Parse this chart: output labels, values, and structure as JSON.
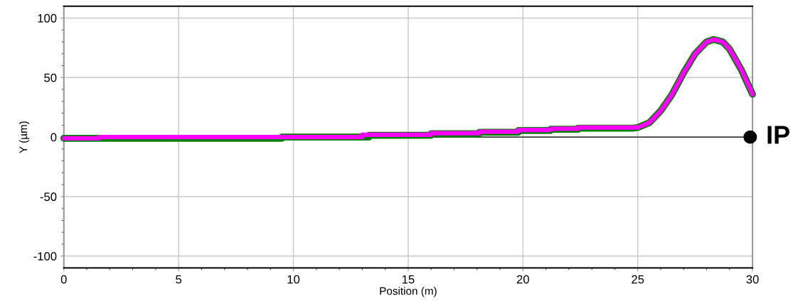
{
  "chart_data": {
    "type": "line",
    "xlabel": "Position (m)",
    "ylabel": "Y (µm)",
    "xlim": [
      0,
      30
    ],
    "ylim": [
      -110,
      110
    ],
    "xticks": [
      0,
      {
        "value": 1,
        "label": null
      },
      {
        "value": 2,
        "label": null
      },
      {
        "value": 3,
        "label": null
      },
      {
        "value": 4,
        "label": null
      },
      5,
      {
        "value": 6,
        "label": null
      },
      {
        "value": 7,
        "label": null
      },
      {
        "value": 8,
        "label": null
      },
      {
        "value": 9,
        "label": null
      },
      10,
      {
        "value": 11,
        "label": null
      },
      {
        "value": 12,
        "label": null
      },
      {
        "value": 13,
        "label": null
      },
      {
        "value": 14,
        "label": null
      },
      15,
      {
        "value": 16,
        "label": null
      },
      {
        "value": 17,
        "label": null
      },
      {
        "value": 18,
        "label": null
      },
      {
        "value": 19,
        "label": null
      },
      20,
      {
        "value": 21,
        "label": null
      },
      {
        "value": 22,
        "label": null
      },
      {
        "value": 23,
        "label": null
      },
      {
        "value": 24,
        "label": null
      },
      25,
      {
        "value": 26,
        "label": null
      },
      {
        "value": 27,
        "label": null
      },
      {
        "value": 28,
        "label": null
      },
      {
        "value": 29,
        "label": null
      },
      30
    ],
    "yticks": [
      -100,
      {
        "value": -90,
        "label": null
      },
      {
        "value": -80,
        "label": null
      },
      {
        "value": -70,
        "label": null
      },
      {
        "value": -60,
        "label": null
      },
      -50,
      {
        "value": -40,
        "label": null
      },
      {
        "value": -30,
        "label": null
      },
      {
        "value": -20,
        "label": null
      },
      {
        "value": -10,
        "label": null
      },
      0,
      {
        "value": 10,
        "label": null
      },
      {
        "value": 20,
        "label": null
      },
      {
        "value": 30,
        "label": null
      },
      {
        "value": 40,
        "label": null
      },
      50,
      {
        "value": 60,
        "label": null
      },
      {
        "value": 70,
        "label": null
      },
      {
        "value": 80,
        "label": null
      },
      {
        "value": 90,
        "label": null
      },
      100
    ],
    "grid": true,
    "line_style": "solid",
    "marker": "none",
    "ref_lines": [
      {
        "axis": "y",
        "value": 0,
        "color": "#000000"
      }
    ],
    "annotations": [
      {
        "text": "IP",
        "x": 29.9,
        "y": 0
      }
    ],
    "series": [
      {
        "color": "#008000",
        "x": [
          0,
          1.6,
          1.6,
          9.5,
          9.5,
          13.3,
          13.3,
          16.0,
          16.0,
          18.1,
          18.1,
          19.8,
          19.8,
          21.2,
          21.2,
          22.4,
          22.4,
          24.8,
          25.0,
          25.5,
          26.0,
          26.5,
          27.0,
          27.5,
          28.0,
          28.3,
          28.7,
          29.0,
          29.5,
          30.0
        ],
        "values": [
          -1,
          -1,
          -1,
          -1,
          0,
          0,
          1.5,
          1.5,
          2.8,
          2.8,
          4,
          4,
          5.5,
          5.5,
          6.5,
          6.5,
          7.5,
          7.5,
          8,
          12,
          22,
          36,
          54,
          70,
          80,
          82,
          80,
          74,
          57,
          36
        ]
      },
      {
        "color": "#ff00ff",
        "x": [
          0,
          1.55,
          1.55,
          13.0,
          13.0,
          16.0,
          16.0,
          18.1,
          18.1,
          19.8,
          19.8,
          21.2,
          21.2,
          22.4,
          22.4,
          24.8,
          25.0,
          25.5,
          26.0,
          26.5,
          27.0,
          27.5,
          28.0,
          28.3,
          28.7,
          29.0,
          29.5,
          30.0
        ],
        "values": [
          -1,
          -1,
          0,
          0,
          2,
          2,
          3.3,
          3.3,
          4.5,
          4.5,
          6,
          6,
          7,
          7,
          8,
          8,
          8,
          12,
          22,
          36,
          54,
          70,
          80,
          82,
          80,
          74,
          57,
          36
        ]
      },
      {
        "type": "scatter",
        "marker": "circle",
        "color": "#000000",
        "x": [
          29.9
        ],
        "values": [
          0
        ]
      }
    ]
  }
}
